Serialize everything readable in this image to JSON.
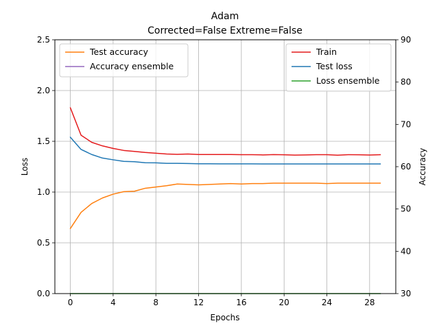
{
  "chart_data": {
    "type": "line",
    "title": "Adam",
    "subtitle": "Corrected=False Extreme=False",
    "xlabel": "Epochs",
    "ylabel": "Loss",
    "ylabel_right": "Accuracy",
    "xlim": [
      -1.45,
      30.45
    ],
    "ylim": [
      0,
      2.5
    ],
    "ylim_right": [
      30,
      90
    ],
    "xticks": [
      0,
      4,
      8,
      12,
      16,
      20,
      24,
      28
    ],
    "yticks": [
      0.0,
      0.5,
      1.0,
      1.5,
      2.0,
      2.5
    ],
    "yticks_right": [
      30,
      40,
      50,
      60,
      70,
      80,
      90
    ],
    "grid": true,
    "left_legend": "top-left",
    "right_legend": "top-right",
    "left_axis_series": [
      {
        "name": "Train",
        "color": "#e41a1c",
        "values": [
          1.83,
          1.56,
          1.49,
          1.455,
          1.43,
          1.41,
          1.4,
          1.39,
          1.383,
          1.375,
          1.372,
          1.375,
          1.37,
          1.37,
          1.37,
          1.37,
          1.368,
          1.368,
          1.366,
          1.369,
          1.367,
          1.364,
          1.366,
          1.368,
          1.368,
          1.363,
          1.368,
          1.367,
          1.365,
          1.368
        ]
      },
      {
        "name": "Test loss",
        "color": "#1f77b4",
        "values": [
          1.54,
          1.42,
          1.37,
          1.335,
          1.318,
          1.302,
          1.299,
          1.289,
          1.288,
          1.283,
          1.283,
          1.281,
          1.279,
          1.279,
          1.278,
          1.278,
          1.278,
          1.278,
          1.277,
          1.277,
          1.277,
          1.277,
          1.277,
          1.277,
          1.277,
          1.277,
          1.277,
          1.277,
          1.277,
          1.277
        ]
      },
      {
        "name": "Loss ensemble",
        "color": "#2ca02c",
        "values": [
          0,
          0,
          0,
          0,
          0,
          0,
          0,
          0,
          0,
          0,
          0,
          0,
          0,
          0,
          0,
          0,
          0,
          0,
          0,
          0,
          0,
          0,
          0,
          0,
          0,
          0,
          0,
          0,
          0,
          0
        ]
      }
    ],
    "right_axis_series": [
      {
        "name": "Test accuracy",
        "color": "#ff7f0e",
        "values": [
          45.4,
          49.2,
          51.3,
          52.6,
          53.5,
          54.1,
          54.2,
          54.9,
          55.2,
          55.5,
          55.9,
          55.8,
          55.7,
          55.8,
          55.9,
          56.0,
          55.9,
          56.0,
          56.0,
          56.1,
          56.1,
          56.1,
          56.1,
          56.1,
          56.0,
          56.1,
          56.1,
          56.1,
          56.1,
          56.1
        ]
      },
      {
        "name": "Accuracy ensemble",
        "color": "#9467bd",
        "values": []
      }
    ]
  }
}
